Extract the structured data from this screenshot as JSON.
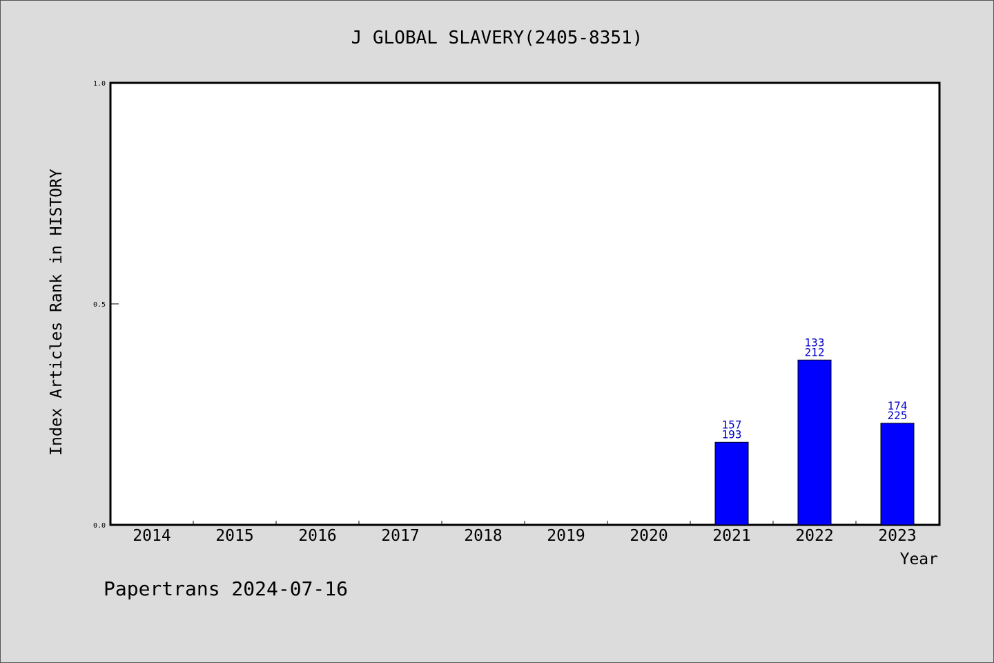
{
  "chart_data": {
    "type": "bar",
    "title": "J GLOBAL SLAVERY(2405-8351)",
    "ylabel": "Index Articles Rank in HISTORY",
    "xlabel": "Year",
    "categories": [
      "2014",
      "2015",
      "2016",
      "2017",
      "2018",
      "2019",
      "2020",
      "2021",
      "2022",
      "2023"
    ],
    "values": [
      null,
      null,
      null,
      null,
      null,
      null,
      null,
      0.187,
      0.373,
      0.23
    ],
    "annotations": [
      null,
      null,
      null,
      null,
      null,
      null,
      null,
      {
        "top": "157",
        "bottom": "193"
      },
      {
        "top": "133",
        "bottom": "212"
      },
      {
        "top": "174",
        "bottom": "225"
      }
    ],
    "ylim": [
      0,
      1.0
    ],
    "yticks": [
      "0.0",
      "0.5",
      "1.0"
    ],
    "grid": false,
    "bar_color": "#0000ff",
    "label_color": "#0000cc"
  },
  "footer": "Papertrans 2024-07-16"
}
